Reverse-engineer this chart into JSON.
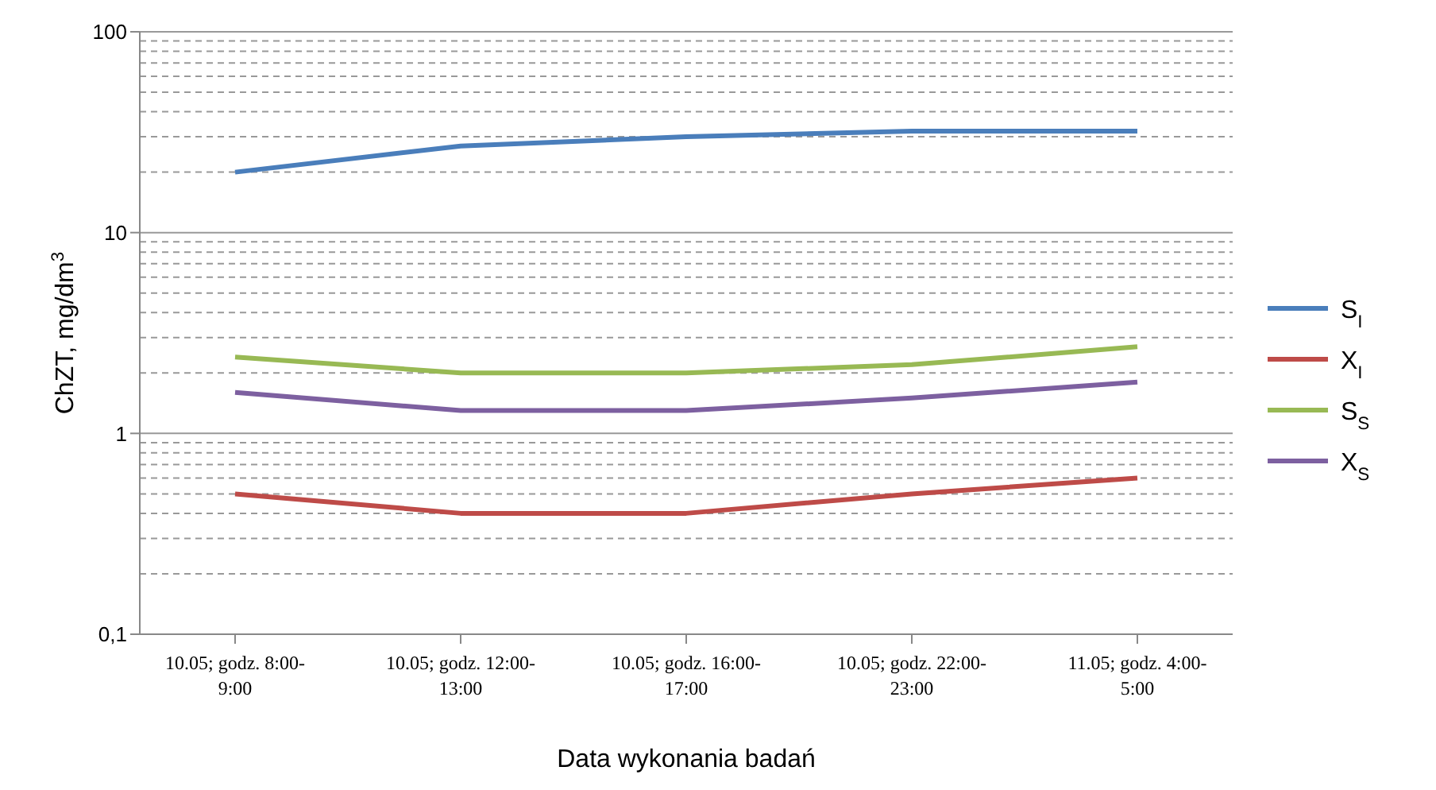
{
  "chart_data": {
    "type": "line",
    "xlabel": "Data wykonania badań",
    "ylabel": "ChZT, mg/dm$^{3}$",
    "categories": [
      "10.05; godz. 8:00-9:00",
      "10.05; godz. 12:00-13:00",
      "10.05; godz. 16:00-17:00",
      "10.05; godz. 22:00-23:00",
      "11.05; godz. 4:00-5:00"
    ],
    "series": [
      {
        "name": "S$_{I}$",
        "color": "#4a7ebb",
        "values": [
          20,
          27,
          30,
          32,
          32
        ]
      },
      {
        "name": "X$_{I}$",
        "color": "#be4b48",
        "values": [
          0.5,
          0.4,
          0.4,
          0.5,
          0.6
        ]
      },
      {
        "name": "S$_{S}$",
        "color": "#98b954",
        "values": [
          2.4,
          2.0,
          2.0,
          2.2,
          2.7
        ]
      },
      {
        "name": "X$_{S}$",
        "color": "#7d60a0",
        "values": [
          1.6,
          1.3,
          1.3,
          1.5,
          1.8
        ]
      }
    ],
    "log": "y",
    "ylim": [
      0.1,
      100
    ],
    "yticks": [
      {
        "value": 0.1,
        "label": "0,1"
      },
      {
        "value": 0.2,
        "label": null
      },
      {
        "value": 0.3,
        "label": null
      },
      {
        "value": 0.4,
        "label": null
      },
      {
        "value": 0.5,
        "label": null
      },
      {
        "value": 0.6,
        "label": null
      },
      {
        "value": 0.7,
        "label": null
      },
      {
        "value": 0.8,
        "label": null
      },
      {
        "value": 0.9,
        "label": null
      },
      1,
      {
        "value": 2,
        "label": null
      },
      {
        "value": 3,
        "label": null
      },
      {
        "value": 4,
        "label": null
      },
      {
        "value": 5,
        "label": null
      },
      {
        "value": 6,
        "label": null
      },
      {
        "value": 7,
        "label": null
      },
      {
        "value": 8,
        "label": null
      },
      {
        "value": 9,
        "label": null
      },
      10,
      {
        "value": 20,
        "label": null
      },
      {
        "value": 30,
        "label": null
      },
      {
        "value": 40,
        "label": null
      },
      {
        "value": 50,
        "label": null
      },
      {
        "value": 60,
        "label": null
      },
      {
        "value": 70,
        "label": null
      },
      {
        "value": 80,
        "label": null
      },
      {
        "value": 90,
        "label": null
      },
      100
    ],
    "grid": "y",
    "legend": "right",
    "marker": "none",
    "line_style": "solid"
  }
}
